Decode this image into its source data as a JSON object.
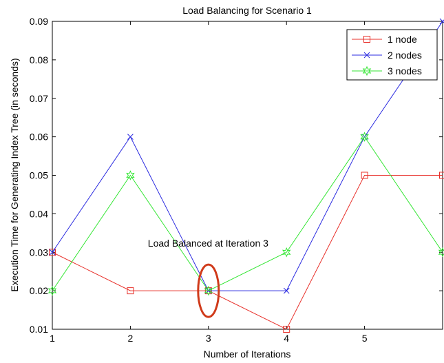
{
  "chart_data": {
    "type": "line",
    "title": "Load Balancing for Scenario 1",
    "xlabel": "Number of Iterations",
    "ylabel": "Execution Time for Generating Index Tree (in seconds)",
    "x": [
      1,
      2,
      3,
      4,
      5,
      6
    ],
    "x_tick_labels": [
      "1",
      "2",
      "3",
      "4",
      "5"
    ],
    "y_tick_labels": [
      "0.01",
      "0.02",
      "0.03",
      "0.04",
      "0.05",
      "0.06",
      "0.07",
      "0.08",
      "0.09"
    ],
    "xlim": [
      1,
      6
    ],
    "ylim": [
      0.01,
      0.09
    ],
    "grid": false,
    "legend_position": "top-right",
    "series": [
      {
        "name": "1 node",
        "values": [
          0.03,
          0.02,
          0.02,
          0.01,
          0.05,
          0.05
        ],
        "color": "#e8302a",
        "marker": "square"
      },
      {
        "name": "2 nodes",
        "values": [
          0.03,
          0.06,
          0.02,
          0.02,
          0.06,
          0.09
        ],
        "color": "#2a2ae0",
        "marker": "x"
      },
      {
        "name": "3 nodes",
        "values": [
          0.02,
          0.05,
          0.02,
          0.03,
          0.06,
          0.03
        ],
        "color": "#33e633",
        "marker": "star"
      }
    ],
    "annotations": [
      {
        "text": "Load Balanced at Iteration 3",
        "x": 3,
        "y": 0.02,
        "shape": "ellipse",
        "color": "#d03a1a"
      }
    ]
  }
}
